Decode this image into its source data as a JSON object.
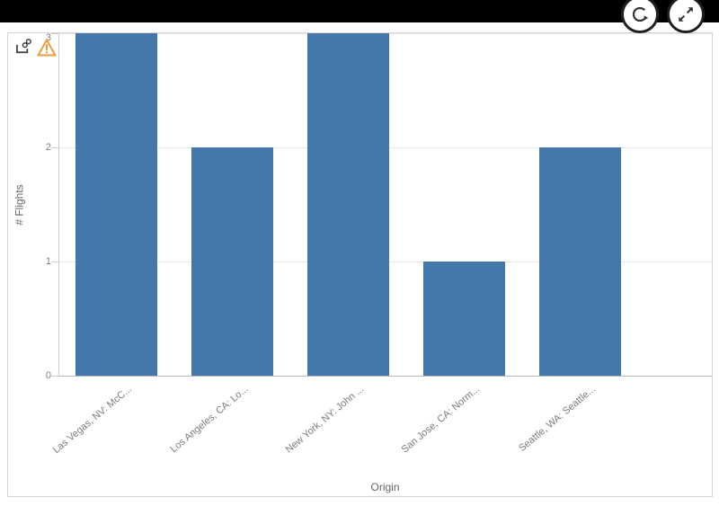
{
  "topbar": {
    "buttons": [
      {
        "name": "refresh",
        "icon": "circular-arrow-icon"
      },
      {
        "name": "expand",
        "icon": "expand-arrows-icon"
      }
    ]
  },
  "panel": {
    "icons": [
      {
        "name": "linked-object-icon"
      },
      {
        "name": "warning-icon"
      }
    ]
  },
  "chart_data": {
    "type": "bar",
    "title": "",
    "categories": [
      "Las Vegas, NV: McC...",
      "Los Angeles, CA: Lo...",
      "New York, NY: John ...",
      "San Jose, CA: Norm...",
      "Seattle, WA: Seattle..."
    ],
    "values": [
      3,
      2,
      3,
      1,
      2
    ],
    "xlabel": "Origin",
    "ylabel": "# Flights",
    "ylim": [
      0,
      3
    ],
    "yticks": [
      0,
      1,
      2,
      3
    ],
    "grid": true,
    "legend": false,
    "bar_color": "#4477aa"
  },
  "colors": {
    "bar": "#4477aa",
    "axis_line": "#cccccc",
    "baseline": "#b9b9b9",
    "gridline": "#e8e8e8",
    "tick_text": "#7f7f7f",
    "axis_title_text": "#666666",
    "panel_border": "#d4d4d4",
    "topbar": "#000000",
    "warning": "#f09c3c",
    "icon_dark": "#404040",
    "button_ring": "#1f1f1f"
  }
}
